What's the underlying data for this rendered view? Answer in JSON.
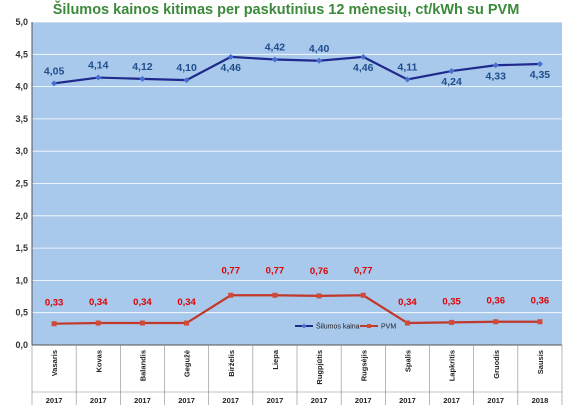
{
  "chart_data": {
    "type": "line",
    "title": "Šilumos kainos kitimas per paskutinius 12 mėnesių, ct/kWh su PVM",
    "categories": [
      "Vasaris",
      "Kovas",
      "Balandis",
      "Gegužė",
      "Birželis",
      "Liepa",
      "Rugpjūtis",
      "Rugsėjis",
      "Spalis",
      "Lapkritis",
      "Gruodis",
      "Sausis"
    ],
    "years": [
      "2017",
      "2017",
      "2017",
      "2017",
      "2017",
      "2017",
      "2017",
      "2017",
      "2017",
      "2017",
      "2017",
      "2018"
    ],
    "ylim": [
      0,
      5
    ],
    "yticks": [
      "0,0",
      "0,5",
      "1,0",
      "1,5",
      "2,0",
      "2,5",
      "3,0",
      "3,5",
      "4,0",
      "4,5",
      "5,0"
    ],
    "grid": true,
    "legend_position": "bottom-right",
    "series": [
      {
        "name": "Šilumos kaina",
        "color": "#1f2a8c",
        "values": [
          4.05,
          4.14,
          4.12,
          4.1,
          4.46,
          4.42,
          4.4,
          4.46,
          4.11,
          4.24,
          4.33,
          4.35
        ],
        "labels": [
          "4,05",
          "4,14",
          "4,12",
          "4,10",
          "4,46",
          "4,42",
          "4,40",
          "4,46",
          "4,11",
          "4,24",
          "4,33",
          "4,35"
        ]
      },
      {
        "name": "PVM",
        "color": "#c0392b",
        "values": [
          0.33,
          0.34,
          0.34,
          0.34,
          0.77,
          0.77,
          0.76,
          0.77,
          0.34,
          0.35,
          0.36,
          0.36
        ],
        "labels": [
          "0,33",
          "0,34",
          "0,34",
          "0,34",
          "0,77",
          "0,77",
          "0,76",
          "0,77",
          "0,34",
          "0,35",
          "0,36",
          "0,36"
        ]
      }
    ]
  }
}
